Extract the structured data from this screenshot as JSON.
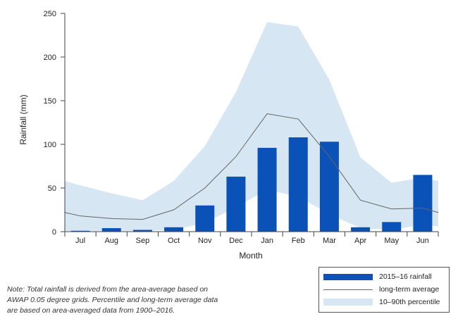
{
  "chart_data": {
    "type": "bar",
    "title": "",
    "xlabel": "Month",
    "ylabel": "Rainfall (mm)",
    "ylim": [
      0,
      250
    ],
    "yticks": [
      0,
      50,
      100,
      150,
      200,
      250
    ],
    "categories": [
      "Jul",
      "Aug",
      "Sep",
      "Oct",
      "Nov",
      "Dec",
      "Jan",
      "Feb",
      "Mar",
      "Apr",
      "May",
      "Jun"
    ],
    "series": [
      {
        "name": "2015–16 rainfall",
        "kind": "bar",
        "color": "#0a52b8",
        "values": [
          1,
          4,
          2,
          5,
          30,
          63,
          96,
          108,
          103,
          5,
          11,
          65
        ]
      },
      {
        "name": "long-term average",
        "kind": "line",
        "color": "#666666",
        "values": [
          18,
          15,
          14,
          25,
          50,
          86,
          135,
          129,
          86,
          36,
          26,
          27
        ]
      },
      {
        "name": "10–90th percentile",
        "kind": "band",
        "color": "#d6e6f2",
        "lower": [
          1,
          1,
          1,
          2,
          10,
          28,
          48,
          40,
          20,
          4,
          2,
          8
        ],
        "upper": [
          53,
          44,
          36,
          58,
          98,
          160,
          240,
          235,
          174,
          85,
          56,
          62
        ]
      }
    ],
    "edge_values": {
      "average_start": 22,
      "average_end": 22,
      "upper_start": 58,
      "upper_end": 58,
      "lower_start": 1,
      "lower_end": 6
    },
    "grid": false,
    "legend_position": "bottom-right"
  },
  "legend": {
    "bar_label": "2015–16 rainfall",
    "line_label": "long-term average",
    "band_label": "10–90th percentile"
  },
  "note": {
    "lines": [
      "Note: Total rainfall is derived from the area-average based on",
      "AWAP 0.05 degree grids. Percentile and long-term average data",
      "are based on area-averaged data from 1900–2016."
    ]
  }
}
